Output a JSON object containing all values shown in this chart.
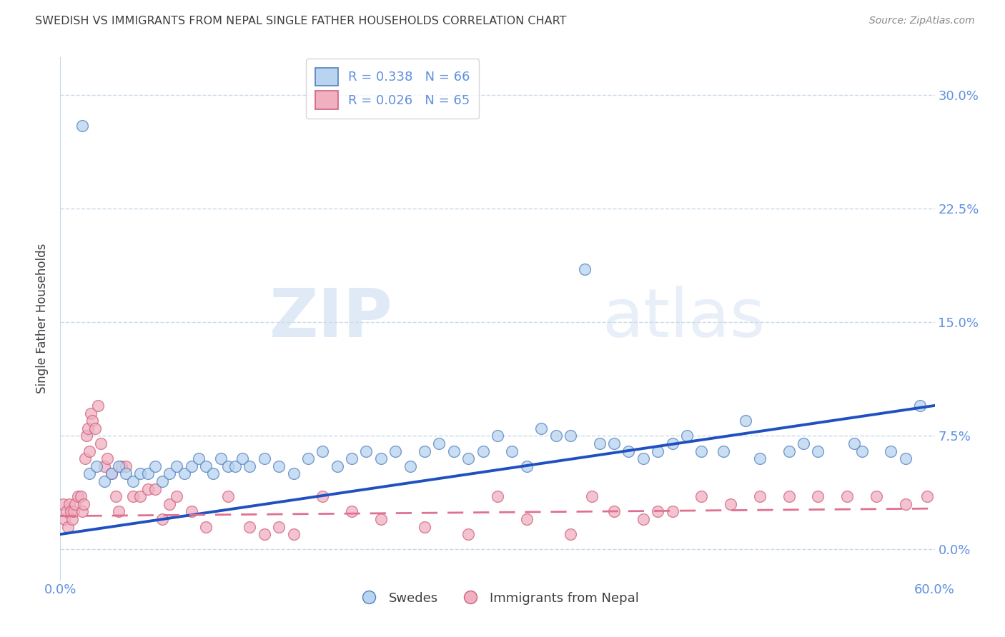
{
  "title": "SWEDISH VS IMMIGRANTS FROM NEPAL SINGLE FATHER HOUSEHOLDS CORRELATION CHART",
  "source": "Source: ZipAtlas.com",
  "ylabel": "Single Father Households",
  "ytick_values": [
    0.0,
    7.5,
    15.0,
    22.5,
    30.0
  ],
  "xlim": [
    0.0,
    60.0
  ],
  "ylim": [
    -2.0,
    32.5
  ],
  "legend_r_swedes": "R = 0.338",
  "legend_n_swedes": "N = 66",
  "legend_r_nepal": "R = 0.026",
  "legend_n_nepal": "N = 65",
  "swede_color": "#b8d4f0",
  "swede_edge_color": "#5080c0",
  "nepal_color": "#f0b0c0",
  "nepal_edge_color": "#d06080",
  "swede_line_color": "#2050c0",
  "nepal_line_color": "#e07090",
  "background_color": "#ffffff",
  "title_color": "#404040",
  "axis_label_color": "#6090e0",
  "grid_color": "#c8d8e8",
  "watermark_zip": "ZIP",
  "watermark_atlas": "atlas",
  "swedes_x": [
    1.5,
    2.0,
    2.5,
    3.0,
    3.5,
    4.0,
    4.5,
    5.0,
    5.5,
    6.0,
    6.5,
    7.0,
    7.5,
    8.0,
    8.5,
    9.0,
    9.5,
    10.0,
    10.5,
    11.0,
    11.5,
    12.0,
    12.5,
    13.0,
    14.0,
    15.0,
    16.0,
    17.0,
    18.0,
    19.0,
    20.0,
    21.0,
    22.0,
    23.0,
    24.0,
    25.0,
    26.0,
    27.0,
    28.0,
    29.0,
    30.0,
    31.0,
    32.0,
    33.0,
    34.0,
    35.0,
    36.0,
    37.0,
    38.0,
    39.0,
    40.0,
    41.0,
    42.0,
    43.0,
    44.0,
    45.5,
    47.0,
    48.0,
    50.0,
    51.0,
    52.0,
    54.5,
    55.0,
    57.0,
    58.0,
    59.0
  ],
  "swedes_y": [
    28.0,
    5.0,
    5.5,
    4.5,
    5.0,
    5.5,
    5.0,
    4.5,
    5.0,
    5.0,
    5.5,
    4.5,
    5.0,
    5.5,
    5.0,
    5.5,
    6.0,
    5.5,
    5.0,
    6.0,
    5.5,
    5.5,
    6.0,
    5.5,
    6.0,
    5.5,
    5.0,
    6.0,
    6.5,
    5.5,
    6.0,
    6.5,
    6.0,
    6.5,
    5.5,
    6.5,
    7.0,
    6.5,
    6.0,
    6.5,
    7.5,
    6.5,
    5.5,
    8.0,
    7.5,
    7.5,
    18.5,
    7.0,
    7.0,
    6.5,
    6.0,
    6.5,
    7.0,
    7.5,
    6.5,
    6.5,
    8.5,
    6.0,
    6.5,
    7.0,
    6.5,
    7.0,
    6.5,
    6.5,
    6.0,
    9.5
  ],
  "nepal_x": [
    0.2,
    0.3,
    0.4,
    0.5,
    0.6,
    0.7,
    0.8,
    0.9,
    1.0,
    1.2,
    1.4,
    1.5,
    1.6,
    1.7,
    1.8,
    1.9,
    2.0,
    2.1,
    2.2,
    2.4,
    2.6,
    2.8,
    3.0,
    3.2,
    3.5,
    3.8,
    4.0,
    4.2,
    4.5,
    5.0,
    5.5,
    6.0,
    6.5,
    7.0,
    7.5,
    8.0,
    9.0,
    10.0,
    11.5,
    13.0,
    14.0,
    15.0,
    16.0,
    18.0,
    20.0,
    22.0,
    25.0,
    28.0,
    30.0,
    32.0,
    35.0,
    36.5,
    38.0,
    40.0,
    41.0,
    42.0,
    44.0,
    46.0,
    48.0,
    50.0,
    52.0,
    54.0,
    56.0,
    58.0,
    59.5
  ],
  "nepal_y": [
    3.0,
    2.0,
    2.5,
    1.5,
    3.0,
    2.5,
    2.0,
    2.5,
    3.0,
    3.5,
    3.5,
    2.5,
    3.0,
    6.0,
    7.5,
    8.0,
    6.5,
    9.0,
    8.5,
    8.0,
    9.5,
    7.0,
    5.5,
    6.0,
    5.0,
    3.5,
    2.5,
    5.5,
    5.5,
    3.5,
    3.5,
    4.0,
    4.0,
    2.0,
    3.0,
    3.5,
    2.5,
    1.5,
    3.5,
    1.5,
    1.0,
    1.5,
    1.0,
    3.5,
    2.5,
    2.0,
    1.5,
    1.0,
    3.5,
    2.0,
    1.0,
    3.5,
    2.5,
    2.0,
    2.5,
    2.5,
    3.5,
    3.0,
    3.5,
    3.5,
    3.5,
    3.5,
    3.5,
    3.0,
    3.5
  ],
  "swede_trend_x0": 0.0,
  "swede_trend_y0": 1.0,
  "swede_trend_x1": 60.0,
  "swede_trend_y1": 9.5,
  "nepal_trend_x0": 0.0,
  "nepal_trend_y0": 2.2,
  "nepal_trend_x1": 60.0,
  "nepal_trend_y1": 2.7
}
